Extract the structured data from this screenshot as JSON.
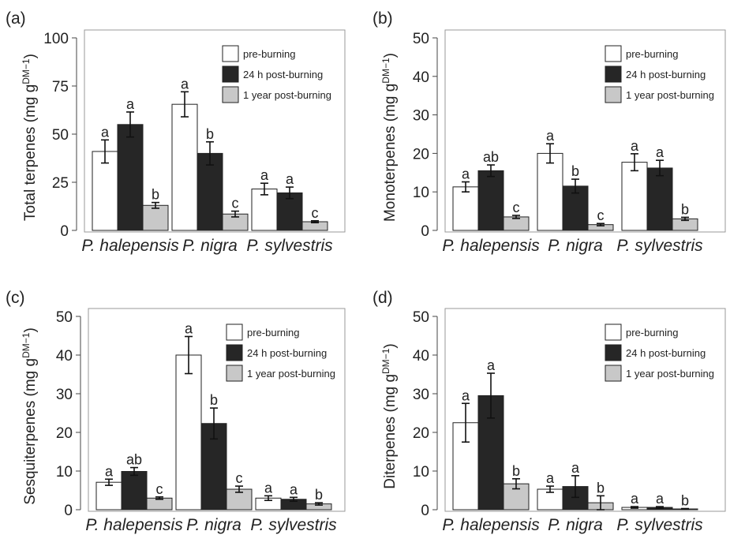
{
  "colors": {
    "pre_burning": "#ffffff",
    "post_24h": "#262626",
    "post_1y": "#c8c8c8"
  },
  "chart_data": [
    {
      "type": "bar",
      "panel_label": "(a)",
      "ylabel": "Total terpenes (mg g",
      "ylabel_sup": "DM",
      "ylabel_suffix": "−1",
      "ylabel_close": ")",
      "ylim": [
        0,
        100
      ],
      "yticks": [
        "0",
        "25",
        "50",
        "75",
        "100"
      ],
      "categories": [
        "P. halepensis",
        "P. nigra",
        "P. sylvestris"
      ],
      "legend": [
        "pre-burning",
        "24 h post-burning",
        "1 year post-burning"
      ],
      "series": [
        {
          "name": "pre-burning",
          "values": [
            41,
            65.5,
            21.5
          ],
          "errors": [
            6,
            6.5,
            3
          ],
          "labels": [
            "a",
            "a",
            "a"
          ]
        },
        {
          "name": "24 h post-burning",
          "values": [
            55,
            40,
            19.5
          ],
          "errors": [
            6.5,
            6,
            3
          ],
          "labels": [
            "a",
            "b",
            "a"
          ]
        },
        {
          "name": "1 year post-burning",
          "values": [
            13,
            8.5,
            4.5
          ],
          "errors": [
            1.5,
            1.5,
            0.5
          ],
          "labels": [
            "b",
            "c",
            "c"
          ]
        }
      ]
    },
    {
      "type": "bar",
      "panel_label": "(b)",
      "ylabel": "Monoterpenes (mg g",
      "ylabel_sup": "DM",
      "ylabel_suffix": "−1",
      "ylabel_close": ")",
      "ylim": [
        0,
        50
      ],
      "yticks": [
        "0",
        "10",
        "20",
        "30",
        "40",
        "50"
      ],
      "categories": [
        "P. halepensis",
        "P. nigra",
        "P. sylvestris"
      ],
      "legend": [
        "pre-burning",
        "24 h post-burning",
        "1 year post-burning"
      ],
      "series": [
        {
          "name": "pre-burning",
          "values": [
            11.3,
            20,
            17.7
          ],
          "errors": [
            1.3,
            2.5,
            2.2
          ],
          "labels": [
            "a",
            "a",
            "a"
          ]
        },
        {
          "name": "24 h post-burning",
          "values": [
            15.5,
            11.5,
            16.2
          ],
          "errors": [
            1.5,
            1.8,
            2
          ],
          "labels": [
            "ab",
            "b",
            "a"
          ]
        },
        {
          "name": "1 year post-burning",
          "values": [
            3.5,
            1.5,
            3
          ],
          "errors": [
            0.4,
            0.3,
            0.4
          ],
          "labels": [
            "c",
            "c",
            "b"
          ]
        }
      ]
    },
    {
      "type": "bar",
      "panel_label": "(c)",
      "ylabel": "Sesquiterpenes (mg g",
      "ylabel_sup": "DM",
      "ylabel_suffix": "−1",
      "ylabel_close": ")",
      "ylim": [
        0,
        50
      ],
      "yticks": [
        "0",
        "10",
        "20",
        "30",
        "40",
        "50"
      ],
      "categories": [
        "P. halepensis",
        "P. nigra",
        "P. sylvestris"
      ],
      "legend": [
        "pre-burning",
        "24 h post-burning",
        "1 year post-burning"
      ],
      "series": [
        {
          "name": "pre-burning",
          "values": [
            7.1,
            40,
            3
          ],
          "errors": [
            0.8,
            4.8,
            0.6
          ],
          "labels": [
            "a",
            "a",
            "a"
          ]
        },
        {
          "name": "24 h post-burning",
          "values": [
            9.9,
            22.3,
            2.7
          ],
          "errors": [
            1,
            4,
            0.5
          ],
          "labels": [
            "ab",
            "b",
            "a"
          ]
        },
        {
          "name": "1 year post-burning",
          "values": [
            3,
            5.3,
            1.5
          ],
          "errors": [
            0.3,
            0.8,
            0.3
          ],
          "labels": [
            "c",
            "c",
            "b"
          ]
        }
      ]
    },
    {
      "type": "bar",
      "panel_label": "(d)",
      "ylabel": "Diterpenes (mg g",
      "ylabel_sup": "DM",
      "ylabel_suffix": "−1",
      "ylabel_close": ")",
      "ylim": [
        0,
        50
      ],
      "yticks": [
        "0",
        "10",
        "20",
        "30",
        "40",
        "50"
      ],
      "categories": [
        "P. halepensis",
        "P. nigra",
        "P. sylvestris"
      ],
      "legend": [
        "pre-burning",
        "24 h post-burning",
        "1 year post-burning"
      ],
      "series": [
        {
          "name": "pre-burning",
          "values": [
            22.5,
            5.3,
            0.6
          ],
          "errors": [
            5,
            0.8,
            0.2
          ],
          "labels": [
            "a",
            "a",
            "a"
          ]
        },
        {
          "name": "24 h post-burning",
          "values": [
            29.5,
            6,
            0.6
          ],
          "errors": [
            5.8,
            2.8,
            0.2
          ],
          "labels": [
            "a",
            "a",
            "a"
          ]
        },
        {
          "name": "1 year post-burning",
          "values": [
            6.7,
            1.8,
            0.2
          ],
          "errors": [
            1.3,
            1.8,
            0.1
          ],
          "labels": [
            "b",
            "b",
            "b"
          ]
        }
      ]
    }
  ]
}
